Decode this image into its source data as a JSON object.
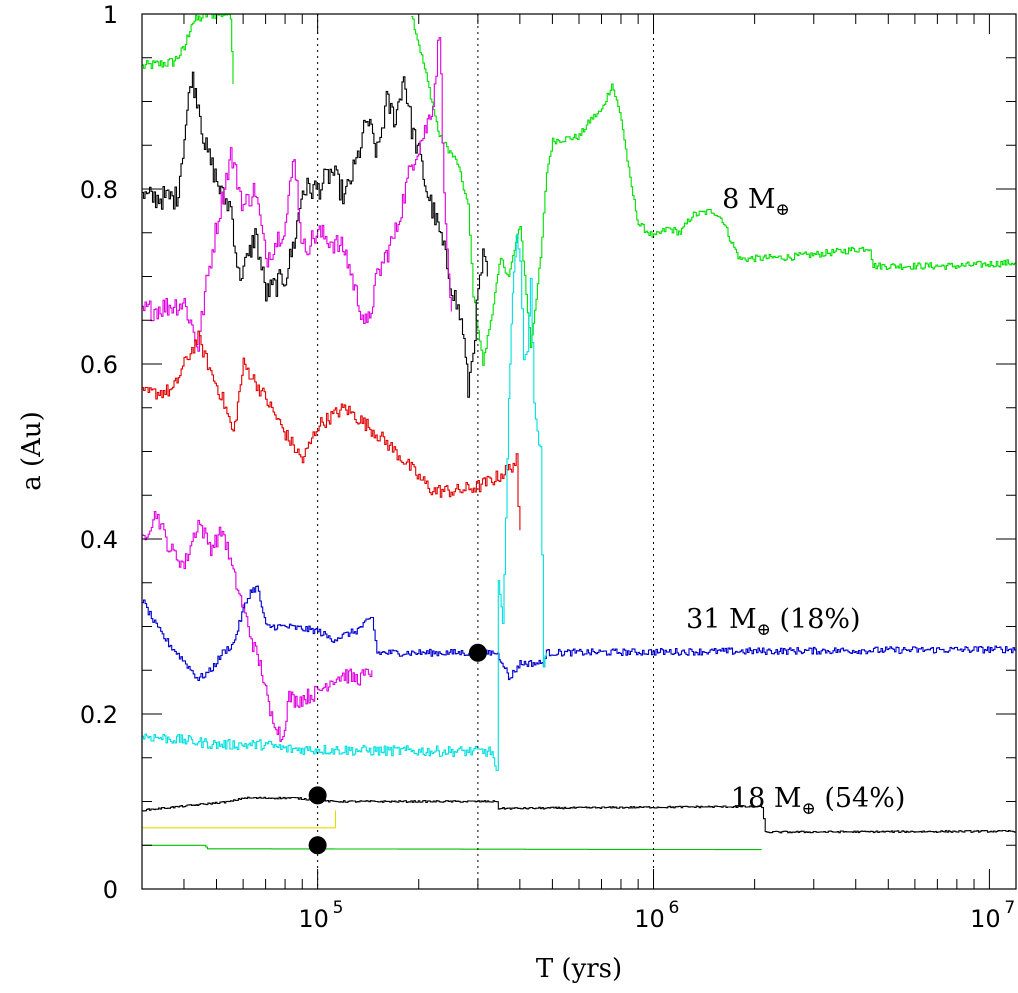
{
  "chart_data": {
    "type": "line",
    "xlabel": "T (yrs)",
    "ylabel": "a (Au)",
    "xscale": "log",
    "xlim": [
      30000,
      12000000
    ],
    "ylim": [
      0,
      1
    ],
    "grid": false,
    "y_ticks": [
      {
        "value": 0,
        "label": "0"
      },
      {
        "value": 0.2,
        "label": "0.2"
      },
      {
        "value": 0.4,
        "label": "0.4"
      },
      {
        "value": 0.6,
        "label": "0.6"
      },
      {
        "value": 0.8,
        "label": "0.8"
      },
      {
        "value": 1,
        "label": "1"
      }
    ],
    "x_ticks": [
      {
        "value": 100000,
        "base": "10",
        "exp": "5"
      },
      {
        "value": 1000000,
        "base": "10",
        "exp": "6"
      },
      {
        "value": 10000000,
        "base": "10",
        "exp": "7"
      }
    ],
    "vertical_lines": [
      100000,
      300000,
      1000000
    ],
    "markers": [
      {
        "x": 300000,
        "y": 0.27
      },
      {
        "x": 100000,
        "y": 0.107
      },
      {
        "x": 100000,
        "y": 0.05
      }
    ],
    "annotations": [
      {
        "text": "8 M",
        "sub": "⊕",
        "rest": "",
        "x": 1600000,
        "y": 0.79
      },
      {
        "text": "31 M",
        "sub": "⊕",
        "rest": " (18%)",
        "x": 1250000,
        "y": 0.31
      },
      {
        "text": "18 M",
        "sub": "⊕",
        "rest": " (54%)",
        "x": 1700000,
        "y": 0.105
      }
    ],
    "series": [
      {
        "color": "#00e000",
        "points": [
          [
            30000,
            0.94
          ],
          [
            37000,
            0.945
          ],
          [
            40000,
            0.96
          ],
          [
            42000,
            0.99
          ],
          [
            47000,
            1.0
          ],
          [
            55000,
            1.0
          ],
          [
            56000,
            0.92
          ]
        ],
        "jitter": 0.006
      },
      {
        "color": "#00e000",
        "points": [
          [
            190000,
            1.0
          ],
          [
            210000,
            0.93
          ],
          [
            230000,
            0.86
          ],
          [
            260000,
            0.83
          ],
          [
            280000,
            0.78
          ],
          [
            290000,
            0.68
          ],
          [
            310000,
            0.6
          ],
          [
            330000,
            0.66
          ],
          [
            350000,
            0.72
          ],
          [
            370000,
            0.7
          ],
          [
            400000,
            0.76
          ],
          [
            430000,
            0.62
          ],
          [
            460000,
            0.72
          ],
          [
            480000,
            0.82
          ],
          [
            500000,
            0.855
          ],
          [
            600000,
            0.86
          ],
          [
            650000,
            0.88
          ],
          [
            700000,
            0.89
          ],
          [
            750000,
            0.92
          ],
          [
            800000,
            0.88
          ],
          [
            850000,
            0.81
          ],
          [
            900000,
            0.76
          ],
          [
            1000000,
            0.745
          ],
          [
            1100000,
            0.755
          ],
          [
            1200000,
            0.75
          ],
          [
            1300000,
            0.77
          ],
          [
            1500000,
            0.775
          ],
          [
            1600000,
            0.765
          ],
          [
            1700000,
            0.74
          ],
          [
            1800000,
            0.72
          ],
          [
            2500000,
            0.722
          ],
          [
            3000000,
            0.725
          ],
          [
            4400000,
            0.733
          ],
          [
            4500000,
            0.712
          ],
          [
            8000000,
            0.712
          ],
          [
            12000000,
            0.716
          ]
        ],
        "jitter": 0.004
      },
      {
        "color": "#000000",
        "points": [
          [
            30000,
            0.79
          ],
          [
            38000,
            0.79
          ],
          [
            40000,
            0.86
          ],
          [
            42000,
            0.93
          ],
          [
            44000,
            0.9
          ],
          [
            46000,
            0.85
          ],
          [
            52000,
            0.79
          ],
          [
            55000,
            0.78
          ],
          [
            58000,
            0.7
          ],
          [
            62000,
            0.72
          ],
          [
            65000,
            0.75
          ],
          [
            70000,
            0.68
          ],
          [
            80000,
            0.7
          ],
          [
            85000,
            0.74
          ],
          [
            90000,
            0.8
          ],
          [
            100000,
            0.8
          ],
          [
            110000,
            0.82
          ],
          [
            120000,
            0.79
          ],
          [
            130000,
            0.83
          ],
          [
            140000,
            0.88
          ],
          [
            150000,
            0.84
          ],
          [
            160000,
            0.9
          ],
          [
            170000,
            0.88
          ],
          [
            180000,
            0.93
          ],
          [
            190000,
            0.87
          ],
          [
            200000,
            0.84
          ],
          [
            210000,
            0.8
          ],
          [
            230000,
            0.75
          ],
          [
            250000,
            0.69
          ],
          [
            270000,
            0.64
          ],
          [
            280000,
            0.57
          ],
          [
            290000,
            0.62
          ],
          [
            300000,
            0.68
          ],
          [
            310000,
            0.72
          ],
          [
            320000,
            0.7
          ]
        ],
        "jitter": 0.014
      },
      {
        "color": "#e000e0",
        "points": [
          [
            30000,
            0.66
          ],
          [
            40000,
            0.67
          ],
          [
            44000,
            0.62
          ],
          [
            46000,
            0.68
          ],
          [
            50000,
            0.76
          ],
          [
            55000,
            0.84
          ],
          [
            60000,
            0.78
          ],
          [
            65000,
            0.8
          ],
          [
            70000,
            0.72
          ],
          [
            80000,
            0.76
          ],
          [
            85000,
            0.84
          ],
          [
            90000,
            0.73
          ],
          [
            100000,
            0.75
          ],
          [
            110000,
            0.74
          ],
          [
            120000,
            0.73
          ],
          [
            130000,
            0.68
          ],
          [
            140000,
            0.64
          ],
          [
            150000,
            0.7
          ],
          [
            170000,
            0.75
          ],
          [
            190000,
            0.83
          ],
          [
            210000,
            0.87
          ],
          [
            220000,
            0.9
          ],
          [
            230000,
            0.98
          ],
          [
            240000,
            0.75
          ],
          [
            250000,
            0.66
          ]
        ],
        "jitter": 0.013
      },
      {
        "color": "#e00000",
        "points": [
          [
            30000,
            0.565
          ],
          [
            37000,
            0.57
          ],
          [
            40000,
            0.6
          ],
          [
            44000,
            0.63
          ],
          [
            48000,
            0.59
          ],
          [
            52000,
            0.56
          ],
          [
            56000,
            0.52
          ],
          [
            60000,
            0.6
          ],
          [
            65000,
            0.58
          ],
          [
            70000,
            0.56
          ],
          [
            80000,
            0.52
          ],
          [
            90000,
            0.49
          ],
          [
            100000,
            0.53
          ],
          [
            120000,
            0.55
          ],
          [
            140000,
            0.53
          ],
          [
            160000,
            0.51
          ],
          [
            180000,
            0.49
          ],
          [
            200000,
            0.47
          ],
          [
            220000,
            0.455
          ],
          [
            260000,
            0.455
          ],
          [
            300000,
            0.46
          ],
          [
            340000,
            0.47
          ],
          [
            370000,
            0.48
          ],
          [
            390000,
            0.49
          ],
          [
            395000,
            0.43
          ],
          [
            400000,
            0.41
          ]
        ],
        "jitter": 0.008
      },
      {
        "color": "#e000e0",
        "points": [
          [
            30000,
            0.4
          ],
          [
            33000,
            0.43
          ],
          [
            36000,
            0.39
          ],
          [
            40000,
            0.37
          ],
          [
            44000,
            0.42
          ],
          [
            48000,
            0.39
          ],
          [
            52000,
            0.41
          ],
          [
            56000,
            0.36
          ],
          [
            60000,
            0.32
          ],
          [
            64000,
            0.28
          ],
          [
            68000,
            0.25
          ],
          [
            72000,
            0.2
          ],
          [
            75000,
            0.19
          ],
          [
            78000,
            0.17
          ],
          [
            82000,
            0.22
          ],
          [
            86000,
            0.215
          ],
          [
            100000,
            0.225
          ],
          [
            110000,
            0.24
          ],
          [
            120000,
            0.245
          ],
          [
            130000,
            0.24
          ],
          [
            140000,
            0.245
          ],
          [
            145000,
            0.25
          ]
        ],
        "jitter": 0.009
      },
      {
        "color": "#0000d0",
        "points": [
          [
            30000,
            0.33
          ],
          [
            33000,
            0.3
          ],
          [
            36000,
            0.28
          ],
          [
            40000,
            0.26
          ],
          [
            44000,
            0.24
          ],
          [
            48000,
            0.25
          ],
          [
            52000,
            0.27
          ],
          [
            56000,
            0.28
          ],
          [
            60000,
            0.32
          ],
          [
            63000,
            0.34
          ],
          [
            66000,
            0.345
          ],
          [
            70000,
            0.3
          ],
          [
            80000,
            0.3
          ],
          [
            100000,
            0.295
          ],
          [
            110000,
            0.285
          ],
          [
            130000,
            0.295
          ],
          [
            145000,
            0.31
          ],
          [
            150000,
            0.27
          ],
          [
            300000,
            0.27
          ],
          [
            340000,
            0.27
          ],
          [
            360000,
            0.255
          ],
          [
            370000,
            0.24
          ],
          [
            400000,
            0.258
          ],
          [
            470000,
            0.258
          ],
          [
            480000,
            0.27
          ],
          [
            12000000,
            0.274
          ]
        ],
        "jitter": 0.004
      },
      {
        "color": "#00e0e0",
        "points": [
          [
            30000,
            0.175
          ],
          [
            40000,
            0.17
          ],
          [
            50000,
            0.165
          ],
          [
            70000,
            0.165
          ],
          [
            80000,
            0.16
          ],
          [
            150000,
            0.158
          ],
          [
            330000,
            0.157
          ],
          [
            340000,
            0.13
          ],
          [
            345000,
            0.35
          ],
          [
            355000,
            0.3
          ],
          [
            370000,
            0.56
          ],
          [
            380000,
            0.68
          ],
          [
            390000,
            0.75
          ],
          [
            400000,
            0.72
          ],
          [
            410000,
            0.6
          ],
          [
            420000,
            0.62
          ],
          [
            430000,
            0.7
          ],
          [
            440000,
            0.55
          ],
          [
            460000,
            0.5
          ],
          [
            470000,
            0.255
          ],
          [
            480000,
            0.27
          ]
        ],
        "jitter": 0.006
      },
      {
        "color": "#000000",
        "points": [
          [
            30000,
            0.09
          ],
          [
            55000,
            0.1
          ],
          [
            60000,
            0.104
          ],
          [
            85000,
            0.104
          ],
          [
            110000,
            0.1
          ],
          [
            340000,
            0.1
          ],
          [
            345000,
            0.092
          ],
          [
            1500000,
            0.094
          ],
          [
            2100000,
            0.094
          ],
          [
            2150000,
            0.065
          ],
          [
            12000000,
            0.066
          ]
        ],
        "jitter": 0.001
      },
      {
        "color": "#e0e000",
        "points": [
          [
            30000,
            0.07
          ],
          [
            112000,
            0.07
          ],
          [
            113000,
            0.09
          ]
        ],
        "jitter": 0
      },
      {
        "color": "#00c000",
        "points": [
          [
            30000,
            0.05
          ],
          [
            46000,
            0.05
          ],
          [
            47000,
            0.046
          ],
          [
            2100000,
            0.045
          ]
        ],
        "jitter": 0
      }
    ]
  }
}
